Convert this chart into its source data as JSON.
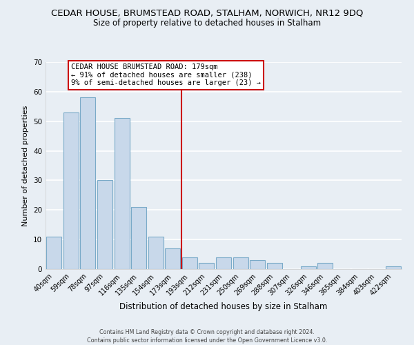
{
  "title": "CEDAR HOUSE, BRUMSTEAD ROAD, STALHAM, NORWICH, NR12 9DQ",
  "subtitle": "Size of property relative to detached houses in Stalham",
  "xlabel": "Distribution of detached houses by size in Stalham",
  "ylabel": "Number of detached properties",
  "bar_labels": [
    "40sqm",
    "59sqm",
    "78sqm",
    "97sqm",
    "116sqm",
    "135sqm",
    "154sqm",
    "173sqm",
    "193sqm",
    "212sqm",
    "231sqm",
    "250sqm",
    "269sqm",
    "288sqm",
    "307sqm",
    "326sqm",
    "346sqm",
    "365sqm",
    "384sqm",
    "403sqm",
    "422sqm"
  ],
  "bar_values": [
    11,
    53,
    58,
    30,
    51,
    21,
    11,
    7,
    4,
    2,
    4,
    4,
    3,
    2,
    0,
    1,
    2,
    0,
    0,
    0,
    1
  ],
  "bar_color": "#c8d8ea",
  "bar_edge_color": "#7aaac8",
  "vline_position": 7.5,
  "vline_color": "#cc0000",
  "ylim": [
    0,
    70
  ],
  "annotation_box_text": "CEDAR HOUSE BRUMSTEAD ROAD: 179sqm\n← 91% of detached houses are smaller (238)\n9% of semi-detached houses are larger (23) →",
  "footer1": "Contains HM Land Registry data © Crown copyright and database right 2024.",
  "footer2": "Contains public sector information licensed under the Open Government Licence v3.0.",
  "background_color": "#e8eef4",
  "plot_bg_color": "#e8eef4",
  "grid_color": "#ffffff",
  "title_fontsize": 9.5,
  "subtitle_fontsize": 8.5,
  "axis_fontsize": 8,
  "tick_fontsize": 7
}
